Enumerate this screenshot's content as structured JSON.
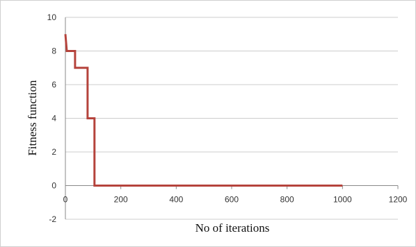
{
  "chart_data": {
    "type": "line",
    "title": "",
    "xlabel": "No of iterations",
    "ylabel": "Fitness function",
    "xlim": [
      0,
      1200
    ],
    "ylim": [
      -2,
      10
    ],
    "xticks": [
      0,
      200,
      400,
      600,
      800,
      1000,
      1200
    ],
    "yticks": [
      -2,
      0,
      2,
      4,
      6,
      8,
      10
    ],
    "grid": "horizontal",
    "legend": "none",
    "series": [
      {
        "color": "#b5433c",
        "x": [
          0,
          5,
          5,
          35,
          35,
          80,
          80,
          105,
          105,
          1000
        ],
        "y": [
          9,
          8,
          8,
          8,
          7,
          7,
          4,
          4,
          0,
          0
        ]
      }
    ]
  }
}
